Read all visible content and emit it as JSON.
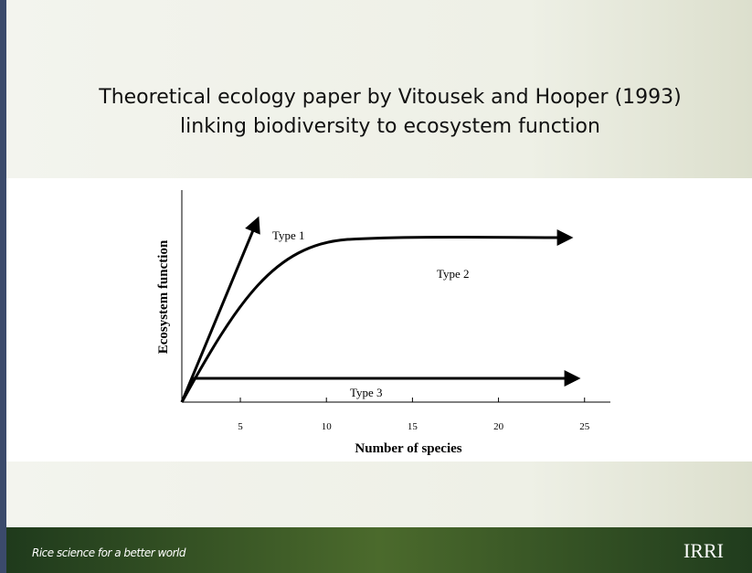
{
  "slide": {
    "title_lines": [
      "Theoretical ecology paper by Vitousek and Hooper (1993)",
      "linking biodiversity to ecosystem function"
    ],
    "figure": {
      "y_label": "Ecosystem function",
      "x_label": "Number of species",
      "xlim": [
        1.6,
        26.5
      ],
      "xticks": [
        5,
        10,
        15,
        20,
        25
      ],
      "curve_labels": [
        "Type 1",
        "Type 2",
        "Type 3"
      ]
    },
    "footer": {
      "tagline": "Rice science for a better world",
      "logo": "IRRI"
    }
  }
}
